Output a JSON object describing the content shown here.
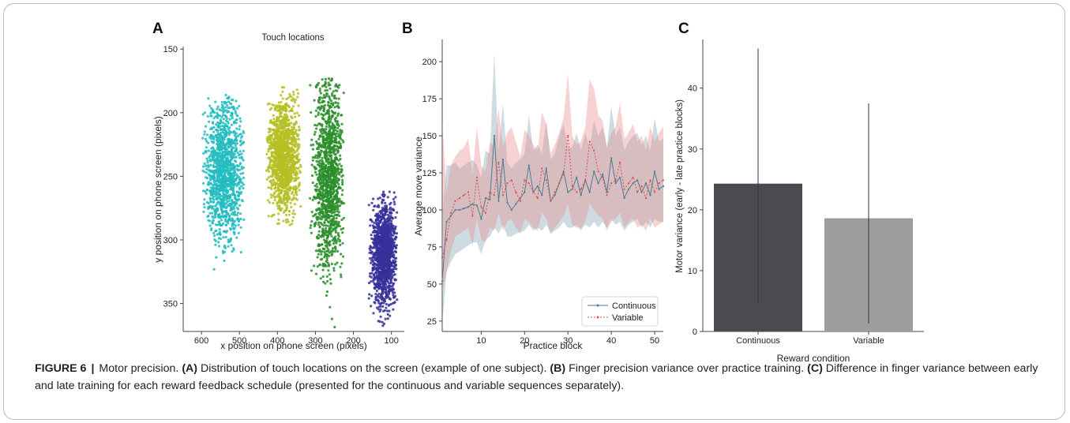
{
  "caption": {
    "figure_label": "FIGURE 6",
    "title": "Motor precision.",
    "a_tag": "(A)",
    "a_text": "Distribution of touch locations on the screen (example of one subject).",
    "b_tag": "(B)",
    "b_text": "Finger precision variance over practice training.",
    "c_tag": "(C)",
    "c_text": "Difference in finger variance between early and late training for each reward feedback schedule (presented for the continuous and variable sequences separately)."
  },
  "chart_data": [
    {
      "panel": "A",
      "type": "scatter",
      "title": "Touch locations",
      "xlabel": "x position on phone screen (pixels)",
      "ylabel": "y position on phone screen (pixels)",
      "xlim": [
        648,
        66
      ],
      "ylim": [
        372,
        148
      ],
      "xticks": [
        600,
        500,
        400,
        300,
        200,
        100
      ],
      "yticks": [
        150,
        200,
        250,
        300,
        350
      ],
      "grid": false,
      "clusters": [
        {
          "color": "#22bcc1",
          "center": [
            540,
            245
          ],
          "x_range": [
            488,
            598
          ],
          "y_range": [
            185,
            328
          ]
        },
        {
          "color": "#b5bf22",
          "center": [
            385,
            235
          ],
          "x_range": [
            338,
            430
          ],
          "y_range": [
            180,
            290
          ]
        },
        {
          "color": "#2a8e2a",
          "center": [
            265,
            250
          ],
          "x_range": [
            225,
            315
          ],
          "y_range": [
            173,
            370
          ]
        },
        {
          "color": "#36309a",
          "center": [
            120,
            312
          ],
          "x_range": [
            85,
            160
          ],
          "y_range": [
            262,
            368
          ]
        }
      ]
    },
    {
      "panel": "B",
      "type": "line",
      "xlabel": "Practice block",
      "ylabel": "Average move variance",
      "xlim": [
        1,
        52
      ],
      "ylim": [
        18,
        215
      ],
      "xticks": [
        10,
        20,
        30,
        40,
        50
      ],
      "yticks": [
        25,
        50,
        75,
        100,
        125,
        150,
        175,
        200
      ],
      "grid": false,
      "legend_position": "bottom-right",
      "x": [
        1,
        2,
        3,
        4,
        5,
        6,
        7,
        8,
        9,
        10,
        11,
        12,
        13,
        14,
        15,
        16,
        17,
        18,
        19,
        20,
        21,
        22,
        23,
        24,
        25,
        26,
        27,
        28,
        29,
        30,
        31,
        32,
        33,
        34,
        35,
        36,
        37,
        38,
        39,
        40,
        41,
        42,
        43,
        44,
        45,
        46,
        47,
        48,
        49,
        50,
        51,
        52
      ],
      "series": [
        {
          "name": "Continuous",
          "color": "#4a7d92",
          "band_color": "#7fa3b3",
          "values": [
            52,
            92,
            96,
            100,
            100,
            101,
            102,
            104,
            103,
            94,
            108,
            107,
            150,
            106,
            134,
            105,
            100,
            104,
            108,
            112,
            130,
            112,
            116,
            110,
            128,
            106,
            110,
            118,
            126,
            112,
            114,
            122,
            110,
            120,
            112,
            126,
            118,
            124,
            112,
            135,
            118,
            122,
            108,
            114,
            118,
            120,
            112,
            118,
            110,
            126,
            114,
            116
          ],
          "lower": [
            22,
            58,
            65,
            70,
            72,
            74,
            76,
            78,
            78,
            70,
            80,
            82,
            88,
            84,
            90,
            82,
            82,
            84,
            85,
            86,
            90,
            86,
            88,
            86,
            90,
            84,
            86,
            88,
            92,
            88,
            88,
            90,
            86,
            90,
            88,
            92,
            88,
            92,
            88,
            94,
            90,
            92,
            86,
            90,
            92,
            94,
            88,
            92,
            88,
            94,
            92,
            92
          ],
          "upper": [
            95,
            130,
            130,
            132,
            128,
            130,
            132,
            134,
            130,
            122,
            140,
            138,
            206,
            140,
            172,
            132,
            128,
            132,
            134,
            138,
            164,
            140,
            144,
            138,
            160,
            134,
            138,
            150,
            158,
            142,
            142,
            152,
            140,
            152,
            142,
            160,
            150,
            156,
            142,
            170,
            150,
            156,
            140,
            146,
            150,
            152,
            144,
            150,
            140,
            162,
            146,
            148
          ]
        },
        {
          "name": "Variable",
          "color": "#d9534f",
          "band_color": "#e88a8a",
          "values": [
            68,
            80,
            98,
            106,
            108,
            110,
            112,
            96,
            122,
            102,
            98,
            112,
            110,
            132,
            110,
            118,
            120,
            112,
            106,
            120,
            118,
            112,
            108,
            128,
            120,
            106,
            112,
            118,
            124,
            150,
            116,
            112,
            114,
            120,
            146,
            140,
            126,
            122,
            110,
            118,
            120,
            132,
            114,
            118,
            122,
            112,
            116,
            108,
            120,
            112,
            118,
            120
          ],
          "lower": [
            45,
            58,
            72,
            82,
            84,
            86,
            88,
            76,
            94,
            80,
            78,
            88,
            86,
            98,
            86,
            92,
            94,
            88,
            84,
            94,
            92,
            88,
            86,
            98,
            94,
            84,
            88,
            92,
            96,
            104,
            90,
            88,
            88,
            92,
            104,
            100,
            96,
            94,
            86,
            92,
            94,
            98,
            88,
            92,
            94,
            88,
            90,
            86,
            94,
            88,
            90,
            92
          ],
          "upper": [
            160,
            112,
            130,
            136,
            140,
            142,
            148,
            124,
            156,
            130,
            126,
            146,
            142,
            168,
            142,
            152,
            156,
            146,
            136,
            154,
            150,
            144,
            140,
            166,
            158,
            138,
            144,
            152,
            162,
            192,
            150,
            144,
            146,
            156,
            188,
            182,
            164,
            160,
            142,
            152,
            156,
            172,
            148,
            152,
            158,
            146,
            150,
            140,
            156,
            146,
            152,
            156
          ]
        }
      ]
    },
    {
      "panel": "C",
      "type": "bar",
      "xlabel": "Reward condition",
      "ylabel": "Motor variance (early - late practice blocks)",
      "categories": [
        "Continuous",
        "Variable"
      ],
      "values": [
        24.3,
        18.6
      ],
      "error_low": [
        4.4,
        1.3
      ],
      "error_high": [
        46.5,
        37.5
      ],
      "colors": [
        "#4a4b50",
        "#9c9d9f"
      ],
      "ylim": [
        0,
        48
      ],
      "yticks": [
        0,
        10,
        20,
        30,
        40
      ],
      "grid": false
    }
  ]
}
